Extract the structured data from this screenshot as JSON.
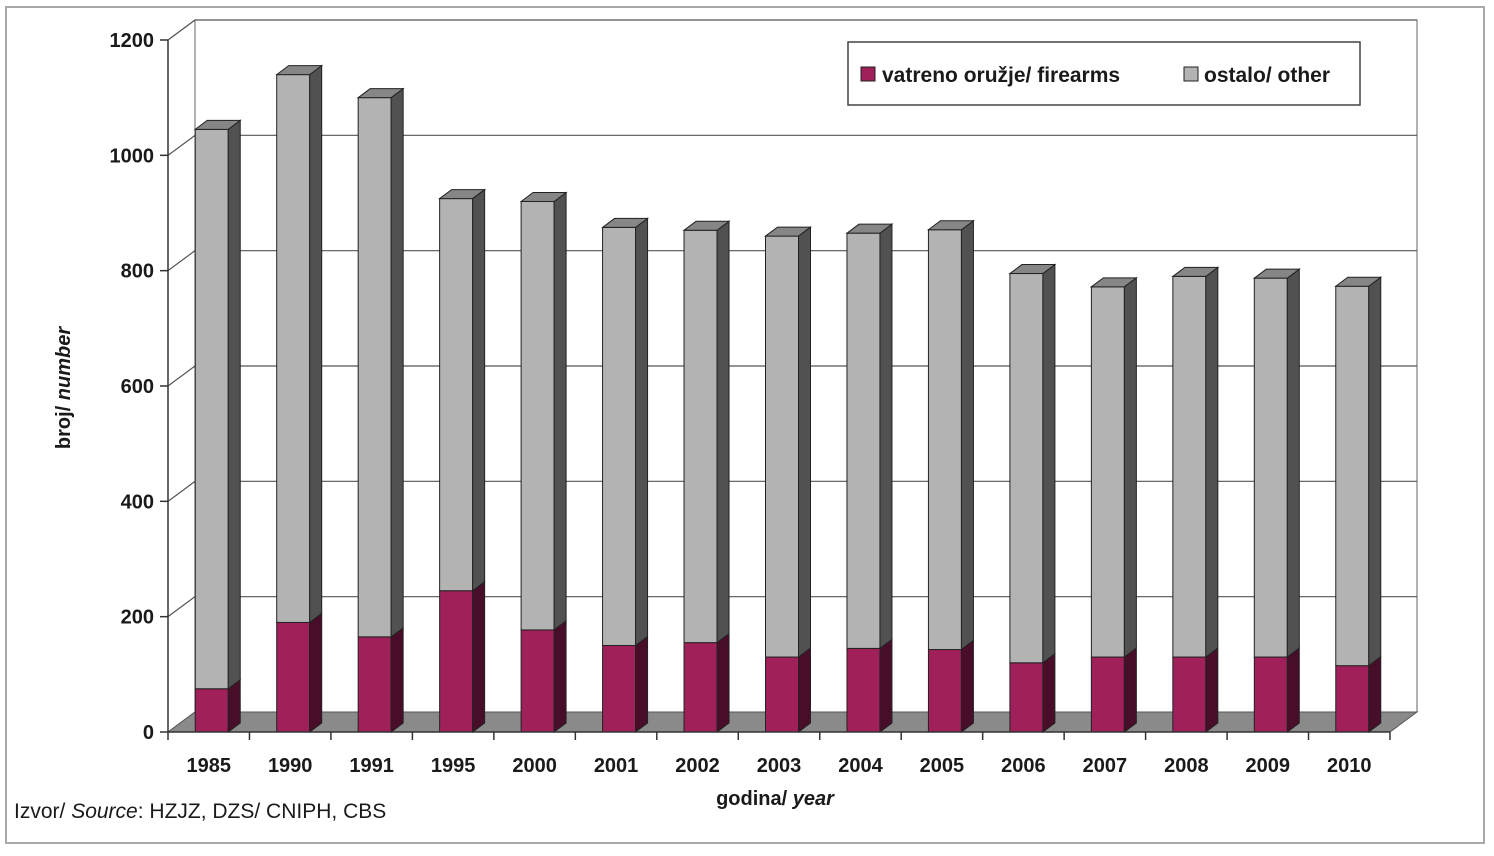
{
  "chart_data": {
    "type": "bar",
    "stacked": true,
    "three_d": true,
    "categories": [
      "1985",
      "1990",
      "1991",
      "1995",
      "2000",
      "2001",
      "2002",
      "2003",
      "2004",
      "2005",
      "2006",
      "2007",
      "2008",
      "2009",
      "2010"
    ],
    "series": [
      {
        "name": "vatreno oružje/ firearms",
        "color": "#a0205a",
        "values": [
          75,
          190,
          165,
          245,
          177,
          150,
          155,
          130,
          145,
          143,
          120,
          130,
          130,
          130,
          115
        ]
      },
      {
        "name": "ostalo/ other",
        "color": "#b3b3b3",
        "values": [
          970,
          950,
          935,
          680,
          743,
          725,
          715,
          730,
          720,
          728,
          675,
          642,
          660,
          657,
          658
        ]
      }
    ],
    "ylim": [
      0,
      1200
    ],
    "yticks": [
      0,
      200,
      400,
      600,
      800,
      1000,
      1200
    ],
    "xlabel_main": "godina/ ",
    "xlabel_italic": "year",
    "ylabel_main": "broj/ ",
    "ylabel_italic": "number",
    "grid": true,
    "legend_position": "top-right"
  },
  "source": {
    "prefix": "Izvor/ ",
    "italic": "Source",
    "text": ": HZJZ, DZS/ CNIPH, CBS"
  }
}
